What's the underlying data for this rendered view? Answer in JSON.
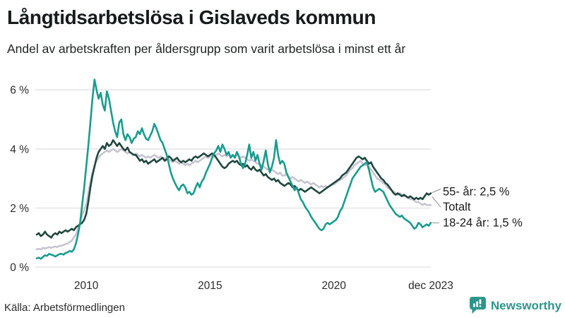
{
  "header": {
    "title": "Långtidsarbetslösa i Gislaveds kommun",
    "subtitle": "Andel av arbetskraften per åldersgrupp som varit arbetslösa i minst ett år"
  },
  "chart_data": {
    "type": "line",
    "unit": "%",
    "x_interval": "monthly",
    "x_range": [
      "jan 2008",
      "dec 2023"
    ],
    "ylim": [
      0,
      6.6
    ],
    "grid": "horizontal",
    "y_ticks": [
      {
        "label": "0 %",
        "value": 0
      },
      {
        "label": "2 %",
        "value": 2
      },
      {
        "label": "4 %",
        "value": 4
      },
      {
        "label": "6 %",
        "value": 6
      }
    ],
    "x_ticks": [
      {
        "label": "2010",
        "month_index": 24
      },
      {
        "label": "2015",
        "month_index": 84
      },
      {
        "label": "2020",
        "month_index": 144
      },
      {
        "label": "dec 2023",
        "month_index": 191
      }
    ],
    "series": [
      {
        "name": "Totalt",
        "color": "#c7c4d1",
        "end_value": 2.1,
        "values": [
          0.6,
          0.62,
          0.6,
          0.65,
          0.63,
          0.65,
          0.68,
          0.65,
          0.68,
          0.7,
          0.68,
          0.72,
          0.72,
          0.75,
          0.78,
          0.8,
          0.85,
          0.9,
          1.0,
          1.1,
          1.3,
          1.5,
          1.75,
          1.95,
          2.1,
          2.5,
          2.9,
          3.2,
          3.45,
          3.6,
          3.7,
          3.8,
          3.85,
          3.9,
          3.95,
          3.9,
          3.95,
          4.0,
          3.95,
          3.9,
          3.95,
          4.0,
          3.95,
          3.9,
          3.85,
          3.9,
          3.85,
          3.8,
          3.85,
          3.8,
          3.75,
          3.8,
          3.75,
          3.7,
          3.75,
          3.7,
          3.75,
          3.8,
          3.75,
          3.7,
          3.75,
          3.7,
          3.65,
          3.7,
          3.65,
          3.6,
          3.55,
          3.6,
          3.55,
          3.5,
          3.55,
          3.5,
          3.45,
          3.5,
          3.45,
          3.5,
          3.55,
          3.6,
          3.55,
          3.6,
          3.65,
          3.7,
          3.75,
          3.7,
          3.75,
          3.8,
          3.75,
          3.8,
          3.85,
          3.8,
          3.75,
          3.8,
          3.75,
          3.8,
          3.75,
          3.8,
          3.75,
          3.8,
          3.75,
          3.7,
          3.75,
          3.7,
          3.65,
          3.6,
          3.65,
          3.6,
          3.55,
          3.5,
          3.5,
          3.45,
          3.4,
          3.35,
          3.3,
          3.35,
          3.3,
          3.25,
          3.2,
          3.15,
          3.2,
          3.1,
          3.1,
          3.15,
          3.05,
          3.0,
          3.05,
          3.0,
          2.95,
          2.9,
          2.95,
          2.9,
          2.85,
          2.9,
          2.85,
          2.8,
          2.85,
          2.8,
          2.75,
          2.7,
          2.75,
          2.7,
          2.75,
          2.7,
          2.75,
          2.8,
          2.8,
          2.85,
          2.9,
          2.95,
          3.0,
          3.05,
          3.1,
          3.2,
          3.3,
          3.35,
          3.45,
          3.5,
          3.55,
          3.6,
          3.5,
          3.45,
          3.5,
          3.4,
          3.3,
          3.2,
          3.1,
          3.0,
          2.95,
          2.9,
          2.85,
          2.8,
          2.7,
          2.65,
          2.6,
          2.55,
          2.5,
          2.45,
          2.5,
          2.45,
          2.4,
          2.4,
          2.35,
          2.3,
          2.3,
          2.25,
          2.2,
          2.2,
          2.15,
          2.1,
          2.15,
          2.1,
          2.1,
          2.1
        ]
      },
      {
        "name": "55- år",
        "color": "#20473f",
        "end_value": 2.5,
        "values": [
          1.1,
          1.15,
          1.05,
          1.1,
          1.2,
          1.1,
          1.05,
          1.0,
          1.1,
          1.15,
          1.1,
          1.2,
          1.15,
          1.2,
          1.25,
          1.2,
          1.25,
          1.3,
          1.25,
          1.35,
          1.4,
          1.45,
          1.5,
          1.6,
          1.8,
          2.2,
          2.7,
          3.1,
          3.4,
          3.7,
          3.9,
          4.0,
          4.1,
          4.0,
          4.2,
          4.1,
          4.15,
          4.3,
          4.2,
          4.1,
          4.2,
          4.1,
          4.0,
          3.95,
          4.05,
          3.9,
          3.85,
          3.8,
          3.8,
          3.7,
          3.6,
          3.65,
          3.55,
          3.6,
          3.5,
          3.55,
          3.6,
          3.65,
          3.55,
          3.6,
          3.65,
          3.7,
          3.6,
          3.65,
          3.75,
          3.7,
          3.6,
          3.65,
          3.7,
          3.6,
          3.55,
          3.6,
          3.55,
          3.6,
          3.65,
          3.6,
          3.7,
          3.75,
          3.7,
          3.75,
          3.8,
          3.85,
          3.8,
          3.75,
          3.8,
          3.85,
          3.8,
          3.7,
          3.6,
          3.5,
          3.4,
          3.35,
          3.4,
          3.5,
          3.55,
          3.6,
          3.55,
          3.6,
          3.5,
          3.45,
          3.5,
          3.4,
          3.45,
          3.35,
          3.3,
          3.4,
          3.3,
          3.25,
          3.3,
          3.2,
          3.1,
          3.15,
          3.05,
          3.0,
          2.95,
          3.0,
          2.9,
          2.95,
          2.85,
          2.8,
          2.75,
          2.8,
          2.85,
          2.8,
          2.7,
          2.75,
          2.65,
          2.6,
          2.65,
          2.6,
          2.55,
          2.6,
          2.65,
          2.7,
          2.65,
          2.6,
          2.55,
          2.5,
          2.55,
          2.6,
          2.65,
          2.7,
          2.75,
          2.8,
          2.85,
          2.9,
          2.95,
          3.0,
          3.1,
          3.15,
          3.2,
          3.3,
          3.4,
          3.5,
          3.6,
          3.7,
          3.75,
          3.7,
          3.65,
          3.7,
          3.6,
          3.5,
          3.55,
          3.4,
          3.3,
          3.2,
          3.1,
          3.0,
          2.95,
          2.85,
          2.8,
          2.7,
          2.6,
          2.5,
          2.45,
          2.5,
          2.45,
          2.4,
          2.45,
          2.4,
          2.35,
          2.4,
          2.35,
          2.3,
          2.35,
          2.3,
          2.35,
          2.3,
          2.4,
          2.5,
          2.45,
          2.5
        ]
      },
      {
        "name": "18-24 år",
        "color": "#1a9c8d",
        "end_value": 1.5,
        "values": [
          0.3,
          0.32,
          0.28,
          0.35,
          0.4,
          0.38,
          0.45,
          0.42,
          0.4,
          0.36,
          0.4,
          0.44,
          0.45,
          0.42,
          0.48,
          0.5,
          0.55,
          0.52,
          0.6,
          0.8,
          1.1,
          1.5,
          2.1,
          2.7,
          3.4,
          4.1,
          4.9,
          5.7,
          6.35,
          6.0,
          5.7,
          5.9,
          5.5,
          5.3,
          5.95,
          5.7,
          5.3,
          4.9,
          4.6,
          4.4,
          4.9,
          5.0,
          4.5,
          4.3,
          4.5,
          4.4,
          4.2,
          4.35,
          4.4,
          4.6,
          4.5,
          4.7,
          4.5,
          4.35,
          4.3,
          4.45,
          4.6,
          4.85,
          4.7,
          4.5,
          4.3,
          4.2,
          4.0,
          3.8,
          3.5,
          3.2,
          3.0,
          2.85,
          2.7,
          2.6,
          2.75,
          2.8,
          2.7,
          2.5,
          2.55,
          2.45,
          2.5,
          2.7,
          2.85,
          2.7,
          2.9,
          3.0,
          3.2,
          3.35,
          3.5,
          3.7,
          3.85,
          3.95,
          4.1,
          3.9,
          4.15,
          4.0,
          3.8,
          3.9,
          3.7,
          3.8,
          3.7,
          3.9,
          3.75,
          3.5,
          3.35,
          3.5,
          3.8,
          4.15,
          3.7,
          3.9,
          3.6,
          3.8,
          3.5,
          3.3,
          3.6,
          3.95,
          3.5,
          3.2,
          3.4,
          3.7,
          4.3,
          3.8,
          3.5,
          3.6,
          3.5,
          3.2,
          3.05,
          2.9,
          2.75,
          2.6,
          2.7,
          2.5,
          2.3,
          2.2,
          2.05,
          1.95,
          1.85,
          1.7,
          1.6,
          1.5,
          1.4,
          1.3,
          1.25,
          1.3,
          1.45,
          1.5,
          1.45,
          1.5,
          1.55,
          1.6,
          1.7,
          1.9,
          2.0,
          2.2,
          2.4,
          2.6,
          2.8,
          3.0,
          3.1,
          3.2,
          3.3,
          3.4,
          3.45,
          3.5,
          3.55,
          3.3,
          3.0,
          2.7,
          2.55,
          2.6,
          2.65,
          2.6,
          2.55,
          2.4,
          2.25,
          2.1,
          2.0,
          1.9,
          1.8,
          1.75,
          1.7,
          1.75,
          1.65,
          1.6,
          1.55,
          1.5,
          1.4,
          1.3,
          1.35,
          1.5,
          1.45,
          1.35,
          1.4,
          1.45,
          1.4,
          1.5
        ]
      }
    ],
    "annotations": [
      {
        "text": "55- år: 2,5 %",
        "series": "55- år"
      },
      {
        "text": "Totalt",
        "series": "Totalt"
      },
      {
        "text": "18-24 år: 1,5 %",
        "series": "18-24 år"
      }
    ]
  },
  "footer": {
    "source": "Källa: Arbetsförmedlingen",
    "brand": "Newsworthy",
    "brand_color": "#2d968c"
  }
}
